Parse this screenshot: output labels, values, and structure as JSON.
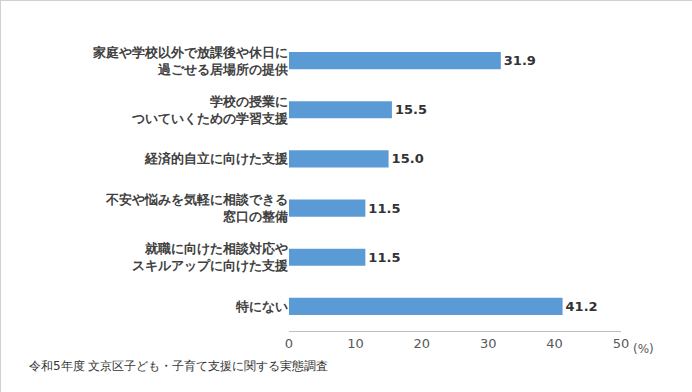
{
  "chart_data": {
    "type": "bar",
    "orientation": "horizontal",
    "categories": [
      "家庭や学校以外で放課後や休日に\n過ごせる居場所の提供",
      "学校の授業に\nついていくための学習支援",
      "経済的自立に向けた支援",
      "不安や悩みを気軽に相談できる\n窓口の整備",
      "就職に向けた相談対応や\nスキルアップに向けた支援",
      "特にない"
    ],
    "values": [
      31.9,
      15.5,
      15.0,
      11.5,
      11.5,
      41.2
    ],
    "value_labels": [
      "31.9",
      "15.5",
      "15.0",
      "11.5",
      "11.5",
      "41.2"
    ],
    "data_labels": true,
    "color": "#5b9bd5",
    "xlim": [
      0,
      50
    ],
    "xticks": [
      0,
      10,
      20,
      30,
      40,
      50
    ],
    "x_label": "(%)",
    "annotations": [
      "令和5年度 文京区子ども・子育て支援に関する実態調査"
    ],
    "grid": false
  }
}
